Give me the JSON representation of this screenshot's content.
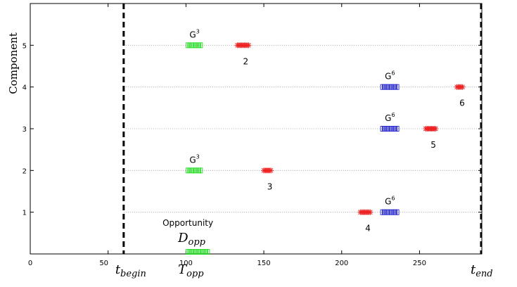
{
  "chart_data": {
    "type": "scatter",
    "ylabel": "Component",
    "xlim": [
      0,
      290
    ],
    "ylim": [
      0,
      6
    ],
    "x_ticks": [
      0,
      50,
      100,
      150,
      200,
      250
    ],
    "y_ticks": [
      1,
      2,
      3,
      4,
      5
    ],
    "grid": "dotted horizontal lines at component levels",
    "colors": {
      "green": "#22dd22",
      "blue": "#2222cc",
      "red": "#ee2222"
    },
    "vlines": [
      {
        "x": 60,
        "label": "t",
        "sub": "begin"
      },
      {
        "x": 290,
        "label": "t",
        "sub": "end"
      }
    ],
    "opportunity": {
      "label": "Opportunity",
      "d_label": "D",
      "d_sub": "opp",
      "t_label": "T",
      "t_sub": "opp",
      "y": 0,
      "x_start": 100,
      "x_end": 116
    },
    "segments": [
      {
        "y": 5,
        "x_start": 100,
        "x_end": 111,
        "color": "green",
        "label": "G",
        "sup": "3"
      },
      {
        "y": 5,
        "x_start": 133,
        "x_end": 141,
        "color": "red",
        "label": "2"
      },
      {
        "y": 4,
        "x_start": 225,
        "x_end": 237,
        "color": "blue",
        "label": "G",
        "sup": "6"
      },
      {
        "y": 4,
        "x_start": 274,
        "x_end": 278,
        "color": "red",
        "label": "6"
      },
      {
        "y": 3,
        "x_start": 225,
        "x_end": 237,
        "color": "blue",
        "label": "G",
        "sup": "6"
      },
      {
        "y": 3,
        "x_start": 254,
        "x_end": 261,
        "color": "red",
        "label": "5"
      },
      {
        "y": 2,
        "x_start": 100,
        "x_end": 111,
        "color": "green",
        "label": "G",
        "sup": "3"
      },
      {
        "y": 2,
        "x_start": 150,
        "x_end": 155,
        "color": "red",
        "label": "3"
      },
      {
        "y": 1,
        "x_start": 225,
        "x_end": 237,
        "color": "blue",
        "label": "G",
        "sup": "6"
      },
      {
        "y": 1,
        "x_start": 212,
        "x_end": 219,
        "color": "red",
        "label": "4"
      }
    ]
  }
}
